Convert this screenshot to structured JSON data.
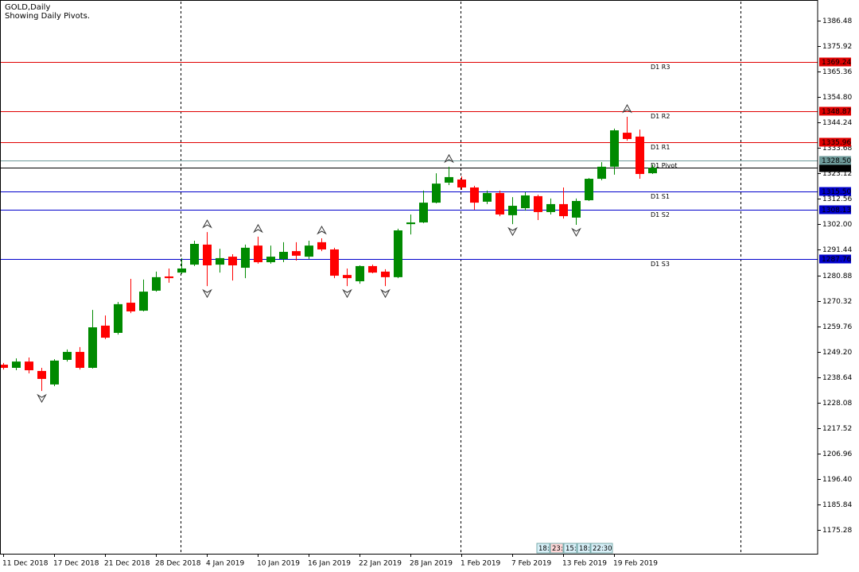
{
  "chart_data": {
    "type": "candlestick",
    "title": "GOLD,Daily",
    "subtitle": "Showing Daily Pivots.",
    "categories": [
      "11 Dec 2018",
      null,
      null,
      null,
      "17 Dec 2018",
      null,
      null,
      null,
      "21 Dec 2018",
      null,
      null,
      null,
      "28 Dec 2018",
      null,
      null,
      null,
      "4 Jan 2019",
      null,
      null,
      null,
      "10 Jan 2019",
      null,
      null,
      null,
      "16 Jan 2019",
      null,
      null,
      null,
      "22 Jan 2019",
      null,
      null,
      null,
      "28 Jan 2019",
      null,
      null,
      null,
      "1 Feb 2019",
      null,
      null,
      null,
      "7 Feb 2019",
      null,
      null,
      null,
      "13 Feb 2019",
      null,
      null,
      null,
      "19 Feb 2019",
      null,
      null,
      null
    ],
    "open": [
      1243.8,
      1242.5,
      1245.1,
      1241.2,
      1235.6,
      1245.8,
      1249.1,
      1242.5,
      1260.0,
      1257.0,
      1269.5,
      1266.2,
      1274.5,
      1280.4,
      1282.0,
      1285.3,
      1293.6,
      1285.3,
      1288.6,
      1284.0,
      1293.2,
      1286.3,
      1287.6,
      1290.9,
      1288.6,
      1294.6,
      1291.6,
      1281.0,
      1278.4,
      1284.7,
      1282.4,
      1280.1,
      1302.1,
      1302.8,
      1311.0,
      1319.3,
      1320.6,
      1317.3,
      1311.4,
      1315.0,
      1305.8,
      1308.7,
      1313.7,
      1307.1,
      1310.4,
      1304.8,
      1312.0,
      1320.9,
      1325.9,
      1340.0,
      1338.4,
      1323.2
    ],
    "high": [
      1244.5,
      1246.4,
      1246.8,
      1242.5,
      1246.1,
      1250.1,
      1251.1,
      1266.5,
      1264.2,
      1269.8,
      1279.4,
      1279.1,
      1282.4,
      1283.7,
      1288.0,
      1295.2,
      1298.8,
      1291.9,
      1289.6,
      1293.6,
      1296.9,
      1293.2,
      1294.6,
      1294.6,
      1295.2,
      1296.2,
      1292.3,
      1283.7,
      1285.0,
      1285.3,
      1283.4,
      1300.2,
      1306.1,
      1316.0,
      1323.2,
      1325.9,
      1321.9,
      1318.0,
      1316.0,
      1316.0,
      1313.3,
      1315.3,
      1314.3,
      1312.7,
      1317.3,
      1312.7,
      1321.2,
      1327.8,
      1341.7,
      1346.6,
      1341.3,
      1326.8
    ],
    "low": [
      1241.8,
      1241.5,
      1240.2,
      1232.9,
      1234.9,
      1245.1,
      1241.8,
      1242.2,
      1254.4,
      1256.3,
      1265.2,
      1265.9,
      1274.1,
      1277.8,
      1281.4,
      1284.7,
      1276.4,
      1282.0,
      1278.7,
      1279.7,
      1285.7,
      1285.7,
      1286.3,
      1287.0,
      1287.6,
      1290.9,
      1279.7,
      1276.4,
      1277.4,
      1281.7,
      1276.4,
      1279.7,
      1297.8,
      1302.5,
      1310.7,
      1318.3,
      1316.3,
      1308.1,
      1310.4,
      1305.4,
      1302.1,
      1307.7,
      1303.8,
      1306.1,
      1304.4,
      1301.8,
      1311.7,
      1320.3,
      1322.6,
      1336.7,
      1320.9,
      1322.9
    ],
    "close": [
      1242.5,
      1245.1,
      1241.5,
      1237.9,
      1245.5,
      1249.1,
      1242.5,
      1259.3,
      1255.0,
      1268.9,
      1265.9,
      1274.1,
      1280.1,
      1279.7,
      1283.7,
      1293.9,
      1285.0,
      1288.0,
      1285.0,
      1292.3,
      1286.3,
      1288.6,
      1290.6,
      1289.0,
      1293.2,
      1291.6,
      1280.7,
      1279.7,
      1284.7,
      1282.0,
      1280.1,
      1299.5,
      1302.8,
      1311.0,
      1318.9,
      1321.6,
      1317.3,
      1311.0,
      1315.0,
      1306.1,
      1309.7,
      1314.0,
      1307.1,
      1310.4,
      1305.4,
      1311.7,
      1320.9,
      1325.9,
      1341.0,
      1337.4,
      1322.9,
      1325.5
    ],
    "up_color": "#008a00",
    "down_color": "#ff0000",
    "ylim": [
      1165.4,
      1395.05
    ],
    "yticks": [
      1386.48,
      1375.92,
      1365.36,
      {
        "value": 1354.8,
        "label": "1354.80"
      },
      1344.24,
      1333.68,
      1323.12,
      1312.56,
      {
        "value": 1302,
        "label": "1302.00"
      },
      1291.44,
      1280.88,
      1270.32,
      1259.76,
      {
        "value": 1249.2,
        "label": "1249.20"
      },
      1238.64,
      1228.08,
      1217.52,
      1206.96,
      {
        "value": 1196.4,
        "label": "1196.40"
      },
      1185.84,
      1175.28
    ],
    "pivots": [
      {
        "name": "D1 R3",
        "value": 1369.24,
        "color": "#e00000"
      },
      {
        "name": "D1 R2",
        "value": 1348.87,
        "color": "#e00000"
      },
      {
        "name": "D1 R1",
        "value": 1335.96,
        "color": "#e00000"
      },
      {
        "name": "D1 Pivot",
        "value": 1328.5,
        "value_label": "1328.50",
        "color": "#6e9a9a"
      },
      {
        "name": "D1 S1",
        "value": 1315.5,
        "value_label": "1315.50",
        "color": "#0000cc"
      },
      {
        "name": "D1 S2",
        "value": 1308.13,
        "color": "#0000cc"
      },
      {
        "name": "D1 S3",
        "value": 1287.76,
        "color": "#0000cc"
      }
    ],
    "last_price": 1325.53,
    "fractals": {
      "up": [
        16,
        20,
        25,
        35,
        49
      ],
      "down": [
        3,
        16,
        27,
        30,
        40,
        45
      ]
    },
    "clock": [
      "18:",
      "23:",
      "15:",
      "18:",
      "22:30"
    ]
  }
}
